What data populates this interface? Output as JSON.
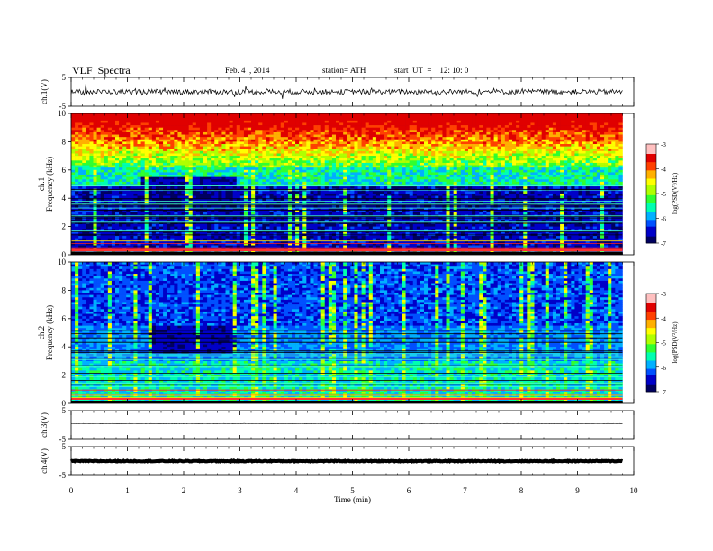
{
  "header": {
    "title": "VLF  Spectra",
    "date": "Feb. 4  , 2014",
    "station": "station= ATH",
    "start_ut": "start  UT  =    12: 10: 0"
  },
  "colors": {
    "spectrogram_scale": [
      "#000060",
      "#0000c8",
      "#0050ff",
      "#00b0ff",
      "#00ffb0",
      "#30ff30",
      "#b0ff00",
      "#ffff00",
      "#ffb000",
      "#ff4000",
      "#e00000",
      "#ffc0c0"
    ]
  },
  "chart_data": [
    {
      "type": "line",
      "name": "ch1-waveform",
      "ylabel": "ch.1(V)",
      "ylim": [
        -5,
        5
      ],
      "yticks": [
        "5",
        "-5"
      ],
      "baseline": 0,
      "noise_amplitude": 0.9
    },
    {
      "type": "heatmap",
      "name": "ch1-spectrogram",
      "ylabel_channel": "ch.1",
      "ylabel": "Frequency  (kHz)",
      "ylim": [
        0,
        10
      ],
      "yticks": [
        "0",
        "2",
        "4",
        "6",
        "8",
        "10"
      ],
      "colorbar": {
        "label": "log(PSD(V²/Hz)",
        "range": [
          -7,
          -3
        ],
        "ticks": [
          "-3",
          "-4",
          "-5",
          "-6",
          "-7"
        ]
      }
    },
    {
      "type": "heatmap",
      "name": "ch2-spectrogram",
      "ylabel_channel": "ch.2",
      "ylabel": "Frequency  (kHz)",
      "ylim": [
        0,
        10
      ],
      "yticks": [
        "0",
        "2",
        "4",
        "6",
        "8",
        "10"
      ],
      "colorbar": {
        "label": "log(PSD(V²/Hz)",
        "range": [
          -7,
          -3
        ],
        "ticks": [
          "-3",
          "-4",
          "-5",
          "-6",
          "-7"
        ]
      }
    },
    {
      "type": "line",
      "name": "ch3-waveform",
      "ylabel": "ch.3(V)",
      "ylim": [
        -5,
        5
      ],
      "yticks": [
        "5",
        "-5"
      ],
      "baseline": 0.5,
      "noise_amplitude": 0.05
    },
    {
      "type": "line",
      "name": "ch4-waveform",
      "ylabel": "ch.4(V)",
      "ylim": [
        -5,
        5
      ],
      "yticks": [
        "5",
        "-5"
      ],
      "baseline": 0,
      "noise_amplitude": 0.15
    }
  ],
  "xaxis": {
    "label": "Time  (min)",
    "range": [
      0,
      10
    ],
    "ticks": [
      "0",
      "1",
      "2",
      "3",
      "4",
      "5",
      "6",
      "7",
      "8",
      "9",
      "10"
    ],
    "data_end": 9.8
  }
}
